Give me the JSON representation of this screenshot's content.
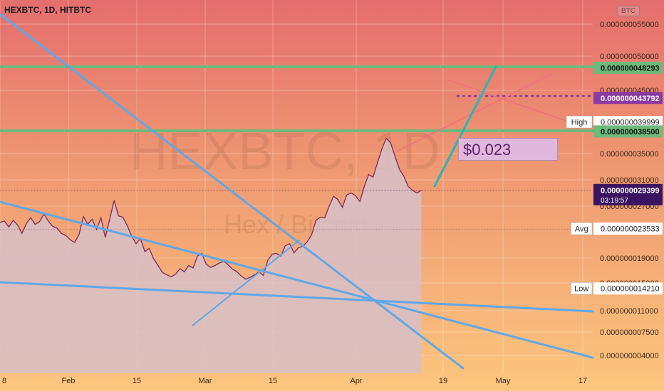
{
  "header": {
    "symbol_title": "HEXBTC, 1D, HITBTC",
    "currency_badge": "BTC"
  },
  "watermark": {
    "ticker": "HEXBTC, 1D",
    "name": "Hex / Bitcoin"
  },
  "annotation": {
    "price_callout": "$0.023"
  },
  "colors": {
    "line": "#7a2a5e",
    "area": "#d7bfc8",
    "trendline": "#5fa8e8",
    "teal": "#24b8b8",
    "green_level": "#6dba7a",
    "purple_level": "#8a3aa0",
    "red_line": "#f07080",
    "current_price_bg": "#3a1460"
  },
  "chart_data": {
    "type": "line",
    "x_labels": [
      "8",
      "Feb",
      "15",
      "Mar",
      "15",
      "Apr",
      "19",
      "May",
      "17"
    ],
    "y_ticks": [
      "0.000000055000",
      "0.000000050000",
      "0.000000045000",
      "0.000000035000",
      "0.000000031000",
      "0.000000027000",
      "0.000000019000",
      "0.000000015000",
      "0.000000011000",
      "0.000000007500",
      "0.000000004000"
    ],
    "series": [
      {
        "values": [
          2.45e-08,
          2.47e-08,
          2.38e-08,
          2.48e-08,
          2.41e-08,
          2.28e-08,
          2.43e-08,
          2.52e-08,
          2.42e-08,
          2.46e-08,
          2.58e-08,
          2.47e-08,
          2.39e-08,
          2.36e-08,
          2.28e-08,
          2.25e-08,
          2.18e-08,
          2.14e-08,
          2.26e-08,
          2.54e-08,
          2.42e-08,
          2.5e-08,
          2.34e-08,
          2.52e-08,
          2.22e-08,
          2.5e-08,
          2.79e-08,
          2.55e-08,
          2.53e-08,
          2.4e-08,
          2.24e-08,
          2.12e-08,
          2.2e-08,
          2e-08,
          2.05e-08,
          1.89e-08,
          1.78e-08,
          1.67e-08,
          1.63e-08,
          1.6e-08,
          1.64e-08,
          1.73e-08,
          1.68e-08,
          1.78e-08,
          1.74e-08,
          1.93e-08,
          1.97e-08,
          1.8e-08,
          1.75e-08,
          1.78e-08,
          1.82e-08,
          1.85e-08,
          1.79e-08,
          1.72e-08,
          1.68e-08,
          1.61e-08,
          1.56e-08,
          1.59e-08,
          1.63e-08,
          1.68e-08,
          1.62e-08,
          1.86e-08,
          1.96e-08,
          1.97e-08,
          1.93e-08,
          2.09e-08,
          2.12e-08,
          1.98e-08,
          2.06e-08,
          2.08e-08,
          2.15e-08,
          2.26e-08,
          2.48e-08,
          2.53e-08,
          2.52e-08,
          2.7e-08,
          2.85e-08,
          2.8e-08,
          2.68e-08,
          2.87e-08,
          2.9e-08,
          2.86e-08,
          2.77e-08,
          3e-08,
          3.18e-08,
          3.14e-08,
          3.36e-08,
          3.57e-08,
          3.74e-08,
          3.67e-08,
          3.46e-08,
          3.26e-08,
          3.16e-08,
          3e-08,
          2.94e-08,
          2.9e-08,
          2.94e-08
        ]
      }
    ],
    "levels": [
      {
        "label": "",
        "value": "0.000000048293",
        "style": "green"
      },
      {
        "label": "",
        "value": "0.000000043792",
        "style": "purple"
      },
      {
        "label": "High",
        "value": "0.000000039999",
        "style": "white"
      },
      {
        "label": "",
        "value": "0.000000038500",
        "style": "green"
      },
      {
        "label": "",
        "value": "0.000000029399",
        "style": "current",
        "countdown": "03:19:57"
      },
      {
        "label": "Avg",
        "value": "0.000000023533",
        "style": "white"
      },
      {
        "label": "Low",
        "value": "0.000000014210",
        "style": "white"
      }
    ],
    "grid": true
  }
}
